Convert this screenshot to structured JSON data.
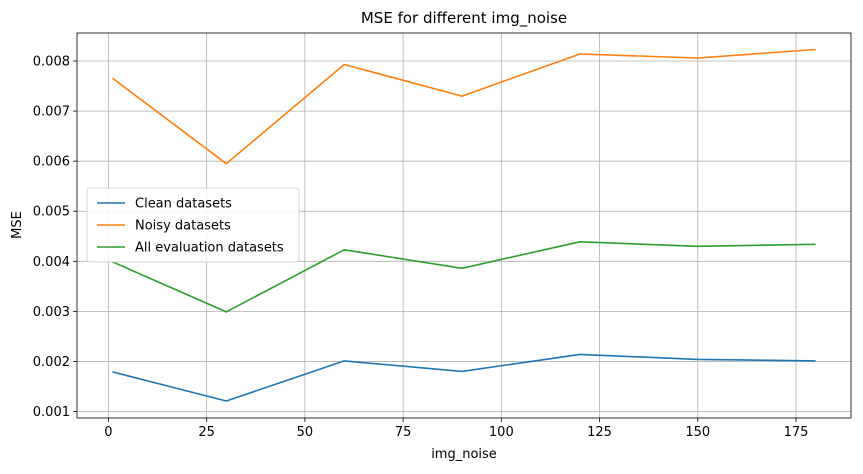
{
  "chart_data": {
    "type": "line",
    "title": "MSE for different img_noise",
    "xlabel": "img_noise",
    "ylabel": "MSE",
    "x": [
      1,
      30,
      60,
      90,
      120,
      150,
      180
    ],
    "xlim": [
      -8,
      189
    ],
    "ylim": [
      0.00087,
      0.00856
    ],
    "xticks": [
      0,
      25,
      50,
      75,
      100,
      125,
      150,
      175
    ],
    "xtick_labels": [
      "0",
      "25",
      "50",
      "75",
      "100",
      "125",
      "150",
      "175"
    ],
    "yticks": [
      0.001,
      0.002,
      0.003,
      0.004,
      0.005,
      0.006,
      0.007,
      0.008
    ],
    "ytick_labels": [
      "0.001",
      "0.002",
      "0.003",
      "0.004",
      "0.005",
      "0.006",
      "0.007",
      "0.008"
    ],
    "grid": true,
    "legend_position": "center-left",
    "series": [
      {
        "name": "Clean datasets",
        "color": "#1f77b4",
        "values": [
          0.00179,
          0.00121,
          0.00201,
          0.0018,
          0.00214,
          0.00204,
          0.00201
        ]
      },
      {
        "name": "Noisy datasets",
        "color": "#ff7f0e",
        "values": [
          0.00766,
          0.00595,
          0.00793,
          0.0073,
          0.00814,
          0.00806,
          0.00823
        ]
      },
      {
        "name": "All evaluation datasets",
        "color": "#2ca02c",
        "values": [
          0.00399,
          0.00299,
          0.00423,
          0.00386,
          0.00439,
          0.0043,
          0.00434
        ]
      }
    ]
  }
}
